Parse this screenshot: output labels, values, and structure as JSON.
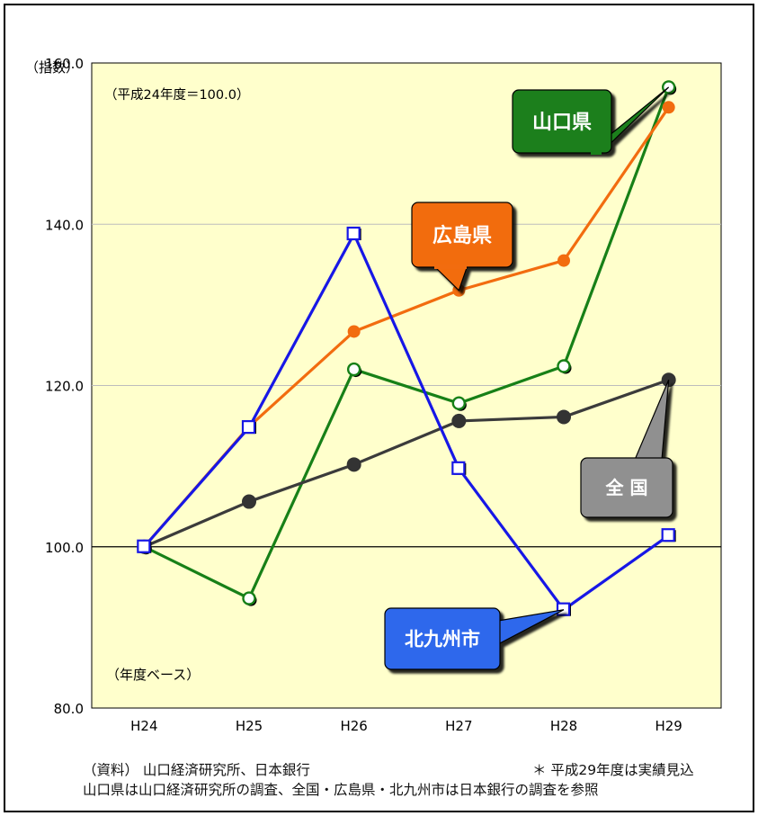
{
  "chart_data": {
    "type": "line",
    "y_unit_label": "（指数）",
    "base_note": "（平成24年度＝100.0）",
    "x_note": "（年度ベース）",
    "categories": [
      "H24",
      "H25",
      "H26",
      "H27",
      "H28",
      "H29"
    ],
    "y_ticks": [
      "80.0",
      "100.0",
      "120.0",
      "140.0",
      "160.0"
    ],
    "ylim": [
      80,
      160
    ],
    "grid": true,
    "series": [
      {
        "name": "山口県",
        "color": "#178017",
        "marker": "circle-open",
        "values": [
          100.0,
          93.6,
          122.0,
          117.8,
          122.4,
          157.0
        ]
      },
      {
        "name": "広島県",
        "color": "#f26c0f",
        "marker": "circle",
        "values": [
          100.0,
          114.9,
          126.7,
          131.8,
          135.5,
          154.5
        ]
      },
      {
        "name": "全 国",
        "color": "#3b3b3b",
        "marker": "circle-dark",
        "values": [
          100.0,
          105.6,
          110.2,
          115.6,
          116.1,
          120.7
        ]
      },
      {
        "name": "北九州市",
        "color": "#1717e6",
        "marker": "square",
        "values": [
          100.0,
          114.8,
          138.8,
          109.7,
          92.2,
          101.4
        ]
      }
    ],
    "callouts": [
      {
        "series": "山口県",
        "label": "山口県",
        "fill": "#1a7f1a"
      },
      {
        "series": "広島県",
        "label": "広島県",
        "fill": "#f26c0f"
      },
      {
        "series": "全 国",
        "label": "全 国",
        "fill": "#909090"
      },
      {
        "series": "北九州市",
        "label": "北九州市",
        "fill": "#2f68ec"
      }
    ]
  },
  "source": {
    "line1": "（資料） 山口経済研究所、日本銀行",
    "note": "＊ 平成29年度は実績見込",
    "line2": "山口県は山口経済研究所の調査、全国・広島県・北九州市は日本銀行の調査を参照"
  }
}
